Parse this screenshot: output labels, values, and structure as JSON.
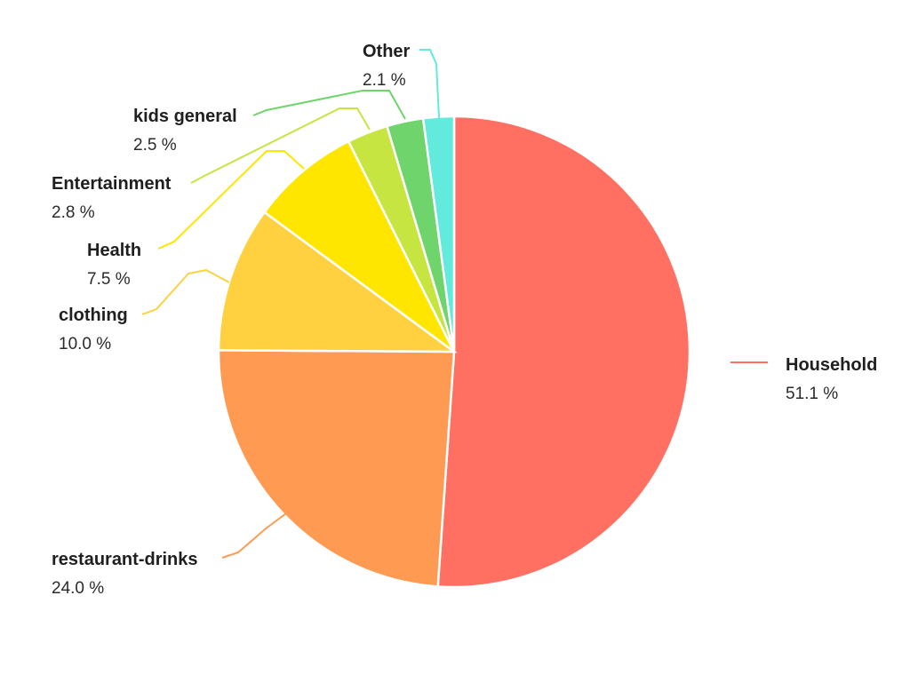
{
  "chart_data": {
    "type": "pie",
    "title": "",
    "legend": "none",
    "series": [
      {
        "values": [
          {
            "label": "Household",
            "value": 51.1,
            "display": "51.1 %",
            "color": "#ff7063"
          },
          {
            "label": "restaurant-drinks",
            "value": 24.0,
            "display": "24.0 %",
            "color": "#ff9a52"
          },
          {
            "label": "clothing",
            "value": 10.0,
            "display": "10.0 %",
            "color": "#ffd141"
          },
          {
            "label": "Health",
            "value": 7.5,
            "display": "7.5 %",
            "color": "#ffe600"
          },
          {
            "label": "Entertainment",
            "value": 2.8,
            "display": "2.8 %",
            "color": "#c6e540"
          },
          {
            "label": "kids general",
            "value": 2.5,
            "display": "2.5 %",
            "color": "#6fd46b"
          },
          {
            "label": "Other",
            "value": 2.1,
            "display": "2.1 %",
            "color": "#62eadc"
          }
        ]
      }
    ]
  }
}
